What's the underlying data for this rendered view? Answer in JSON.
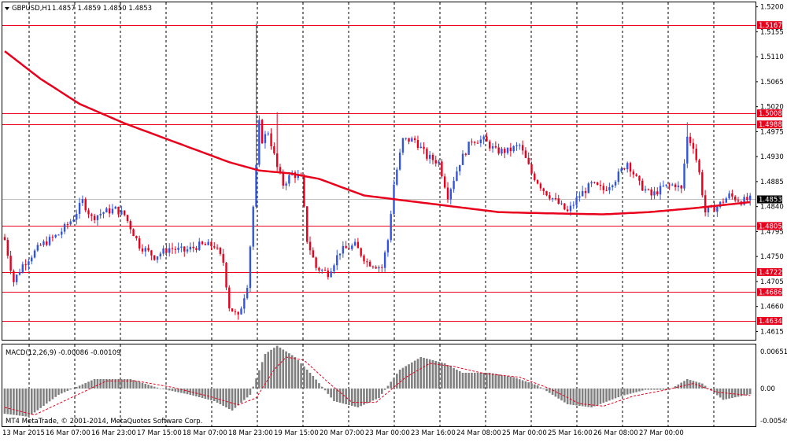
{
  "header": {
    "symbol": "GBPUSD,H1",
    "ohlc": "1.4857 1.4859 1.4850 1.4853"
  },
  "macd_panel": {
    "label": "MACD(12,26,9) -0.00086 -0.00109",
    "copyright": "MT4 MetaTrade, © 2001-2014, MetaQuotes Software Corp.",
    "ticks": [
      "0.00651",
      "0.00",
      "-0.00549"
    ]
  },
  "colors": {
    "bull": "#3355dd",
    "bear": "#e8001c",
    "ma": "#e8001c",
    "level": "#e8001c",
    "grid": "#000000",
    "hist": "#808080",
    "signal": "#e8001c"
  },
  "chart_data": {
    "type": "candlestick",
    "price_ylim": [
      1.46,
      1.5208
    ],
    "price_ticks": [
      "1.5200",
      "1.5155",
      "1.5110",
      "1.5065",
      "1.5020",
      "1.4975",
      "1.4930",
      "1.4885",
      "1.4840",
      "1.4795",
      "1.4750",
      "1.4705",
      "1.4660",
      "1.4615"
    ],
    "current_price": "1.4853",
    "levels": [
      "1.5167",
      "1.5008",
      "1.4988",
      "1.4805",
      "1.4722",
      "1.4686",
      "1.4634"
    ],
    "time_labels": [
      "13 Mar 2015",
      "16 Mar 07:00",
      "16 Mar 23:00",
      "17 Mar 15:00",
      "18 Mar 07:00",
      "18 Mar 23:00",
      "19 Mar 15:00",
      "20 Mar 07:00",
      "23 Mar 00:00",
      "23 Mar 16:00",
      "24 Mar 08:00",
      "25 Mar 00:00",
      "25 Mar 16:00",
      "26 Mar 08:00",
      "27 Mar 00:00"
    ],
    "close_path": [
      [
        0,
        1.478
      ],
      [
        3,
        1.4705
      ],
      [
        6,
        1.4735
      ],
      [
        12,
        1.477
      ],
      [
        18,
        1.479
      ],
      [
        23,
        1.482
      ],
      [
        26,
        1.485
      ],
      [
        29,
        1.482
      ],
      [
        33,
        1.483
      ],
      [
        37,
        1.4835
      ],
      [
        40,
        1.4825
      ],
      [
        45,
        1.477
      ],
      [
        50,
        1.475
      ],
      [
        55,
        1.4765
      ],
      [
        60,
        1.476
      ],
      [
        65,
        1.477
      ],
      [
        70,
        1.477
      ],
      [
        73,
        1.474
      ],
      [
        75,
        1.466
      ],
      [
        78,
        1.464
      ],
      [
        81,
        1.47
      ],
      [
        84,
        1.491
      ],
      [
        85,
        1.499
      ],
      [
        86,
        1.496
      ],
      [
        88,
        1.4975
      ],
      [
        91,
        1.491
      ],
      [
        93,
        1.488
      ],
      [
        96,
        1.49
      ],
      [
        99,
        1.489
      ],
      [
        101,
        1.478
      ],
      [
        104,
        1.473
      ],
      [
        108,
        1.472
      ],
      [
        112,
        1.476
      ],
      [
        117,
        1.477
      ],
      [
        121,
        1.474
      ],
      [
        126,
        1.473
      ],
      [
        128,
        1.478
      ],
      [
        130,
        1.488
      ],
      [
        133,
        1.496
      ],
      [
        137,
        1.496
      ],
      [
        141,
        1.493
      ],
      [
        145,
        1.492
      ],
      [
        148,
        1.486
      ],
      [
        152,
        1.492
      ],
      [
        156,
        1.496
      ],
      [
        160,
        1.496
      ],
      [
        164,
        1.494
      ],
      [
        168,
        1.494
      ],
      [
        172,
        1.495
      ],
      [
        176,
        1.49
      ],
      [
        180,
        1.487
      ],
      [
        184,
        1.485
      ],
      [
        188,
        1.483
      ],
      [
        192,
        1.486
      ],
      [
        196,
        1.488
      ],
      [
        200,
        1.487
      ],
      [
        204,
        1.489
      ],
      [
        208,
        1.492
      ],
      [
        212,
        1.488
      ],
      [
        216,
        1.486
      ],
      [
        220,
        1.4875
      ],
      [
        224,
        1.488
      ],
      [
        226,
        1.487
      ],
      [
        228,
        1.4965
      ],
      [
        230,
        1.495
      ],
      [
        232,
        1.49
      ],
      [
        234,
        1.483
      ],
      [
        238,
        1.484
      ],
      [
        242,
        1.486
      ],
      [
        246,
        1.485
      ],
      [
        249,
        1.4853
      ]
    ],
    "ma_path": [
      [
        0,
        1.512
      ],
      [
        12,
        1.507
      ],
      [
        25,
        1.5025
      ],
      [
        40,
        1.499
      ],
      [
        60,
        1.495
      ],
      [
        75,
        1.492
      ],
      [
        85,
        1.4905
      ],
      [
        95,
        1.49
      ],
      [
        105,
        1.489
      ],
      [
        120,
        1.486
      ],
      [
        135,
        1.485
      ],
      [
        150,
        1.484
      ],
      [
        165,
        1.483
      ],
      [
        180,
        1.4828
      ],
      [
        190,
        1.4827
      ],
      [
        200,
        1.4826
      ],
      [
        215,
        1.483
      ],
      [
        230,
        1.4837
      ],
      [
        249,
        1.4848
      ]
    ],
    "macd_ylim": [
      -0.006,
      0.007
    ],
    "macd_path": [
      [
        0,
        -0.004
      ],
      [
        8,
        -0.0045
      ],
      [
        18,
        -0.001
      ],
      [
        30,
        0.0015
      ],
      [
        42,
        0.0015
      ],
      [
        52,
        0.0
      ],
      [
        62,
        -0.001
      ],
      [
        70,
        -0.002
      ],
      [
        76,
        -0.0035
      ],
      [
        82,
        -0.001
      ],
      [
        87,
        0.0055
      ],
      [
        91,
        0.0068
      ],
      [
        97,
        0.005
      ],
      [
        103,
        0.002
      ],
      [
        110,
        -0.002
      ],
      [
        118,
        -0.003
      ],
      [
        125,
        -0.0015
      ],
      [
        132,
        0.003
      ],
      [
        139,
        0.005
      ],
      [
        147,
        0.004
      ],
      [
        153,
        0.0025
      ],
      [
        162,
        0.0025
      ],
      [
        170,
        0.0018
      ],
      [
        178,
        0.0005
      ],
      [
        188,
        -0.0025
      ],
      [
        196,
        -0.003
      ],
      [
        206,
        -0.0012
      ],
      [
        214,
        -0.0002
      ],
      [
        222,
        -0.0002
      ],
      [
        228,
        0.0015
      ],
      [
        233,
        0.0008
      ],
      [
        240,
        -0.0018
      ],
      [
        249,
        -0.0009
      ]
    ],
    "signal_path": [
      [
        0,
        -0.003
      ],
      [
        10,
        -0.0042
      ],
      [
        22,
        -0.0015
      ],
      [
        34,
        0.0012
      ],
      [
        44,
        0.0012
      ],
      [
        56,
        0.0002
      ],
      [
        68,
        -0.0012
      ],
      [
        78,
        -0.0026
      ],
      [
        84,
        -0.0015
      ],
      [
        90,
        0.003
      ],
      [
        94,
        0.005
      ],
      [
        100,
        0.0045
      ],
      [
        108,
        0.001
      ],
      [
        116,
        -0.0022
      ],
      [
        124,
        -0.0022
      ],
      [
        134,
        0.0018
      ],
      [
        142,
        0.004
      ],
      [
        150,
        0.0035
      ],
      [
        160,
        0.0024
      ],
      [
        172,
        0.0018
      ],
      [
        182,
        0.0
      ],
      [
        192,
        -0.0024
      ],
      [
        200,
        -0.0028
      ],
      [
        210,
        -0.0012
      ],
      [
        220,
        -0.0003
      ],
      [
        230,
        0.0008
      ],
      [
        238,
        -0.0006
      ],
      [
        249,
        -0.0011
      ]
    ]
  }
}
